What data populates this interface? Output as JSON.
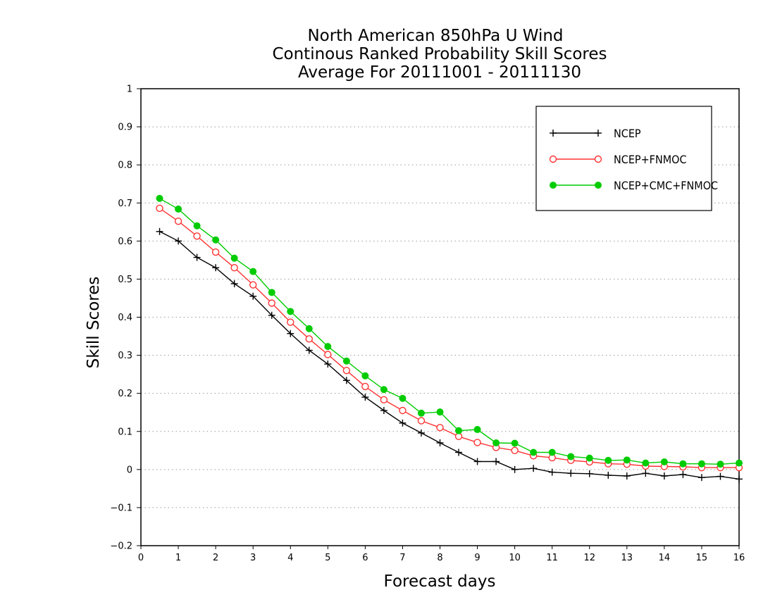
{
  "chart_data": {
    "type": "line",
    "title_lines": [
      "North American 850hPa U Wind",
      "Continous Ranked Probability Skill Scores",
      "Average For 20111001 - 20111130"
    ],
    "xlabel": "Forecast days",
    "ylabel": "Skill Scores",
    "xlim": [
      0,
      16
    ],
    "ylim": [
      -0.2,
      1
    ],
    "xticks": [
      0,
      1,
      2,
      3,
      4,
      5,
      6,
      7,
      8,
      9,
      10,
      11,
      12,
      13,
      14,
      15,
      16
    ],
    "xtick_labels": [
      "0",
      "1",
      "2",
      "3",
      "4",
      "5",
      "6",
      "7",
      "8",
      "9",
      "10",
      "11",
      "12",
      "13",
      "14",
      "15",
      "16"
    ],
    "yticks": [
      -0.2,
      -0.1,
      0,
      0.1,
      0.2,
      0.3,
      0.4,
      0.5,
      0.6,
      0.7,
      0.8,
      0.9,
      1
    ],
    "ytick_labels": [
      "−0.2",
      "−0.1",
      "0",
      "0.1",
      "0.2",
      "0.3",
      "0.4",
      "0.5",
      "0.6",
      "0.7",
      "0.8",
      "0.9",
      "1"
    ],
    "grid": "horizontal dotted",
    "legend_position": "top-right",
    "x": [
      0.5,
      1,
      1.5,
      2,
      2.5,
      3,
      3.5,
      4,
      4.5,
      5,
      5.5,
      6,
      6.5,
      7,
      7.5,
      8,
      8.5,
      9,
      9.5,
      10,
      10.5,
      11,
      11.5,
      12,
      12.5,
      13,
      13.5,
      14,
      14.5,
      15,
      15.5,
      16
    ],
    "series": [
      {
        "name": "NCEP",
        "color": "#000000",
        "marker": "plus",
        "values": [
          0.625,
          0.6,
          0.557,
          0.53,
          0.488,
          0.455,
          0.405,
          0.357,
          0.313,
          0.277,
          0.234,
          0.19,
          0.155,
          0.122,
          0.096,
          0.07,
          0.045,
          0.021,
          0.021,
          0.0,
          0.003,
          -0.007,
          -0.01,
          -0.011,
          -0.015,
          -0.017,
          -0.01,
          -0.017,
          -0.013,
          -0.021,
          -0.018,
          -0.025
        ]
      },
      {
        "name": "NCEP+FNMOC",
        "color": "#ff3333",
        "marker": "open-circle",
        "values": [
          0.686,
          0.652,
          0.613,
          0.571,
          0.53,
          0.485,
          0.437,
          0.387,
          0.343,
          0.302,
          0.26,
          0.218,
          0.183,
          0.155,
          0.128,
          0.11,
          0.087,
          0.071,
          0.058,
          0.05,
          0.036,
          0.031,
          0.024,
          0.02,
          0.015,
          0.014,
          0.009,
          0.008,
          0.007,
          0.005,
          0.005,
          0.005
        ]
      },
      {
        "name": "NCEP+CMC+FNMOC",
        "color": "#00cc00",
        "marker": "filled-circle",
        "values": [
          0.712,
          0.684,
          0.64,
          0.603,
          0.555,
          0.52,
          0.465,
          0.415,
          0.37,
          0.323,
          0.285,
          0.246,
          0.21,
          0.187,
          0.148,
          0.151,
          0.102,
          0.105,
          0.07,
          0.069,
          0.045,
          0.045,
          0.034,
          0.03,
          0.024,
          0.025,
          0.017,
          0.02,
          0.015,
          0.015,
          0.014,
          0.017
        ]
      }
    ]
  }
}
